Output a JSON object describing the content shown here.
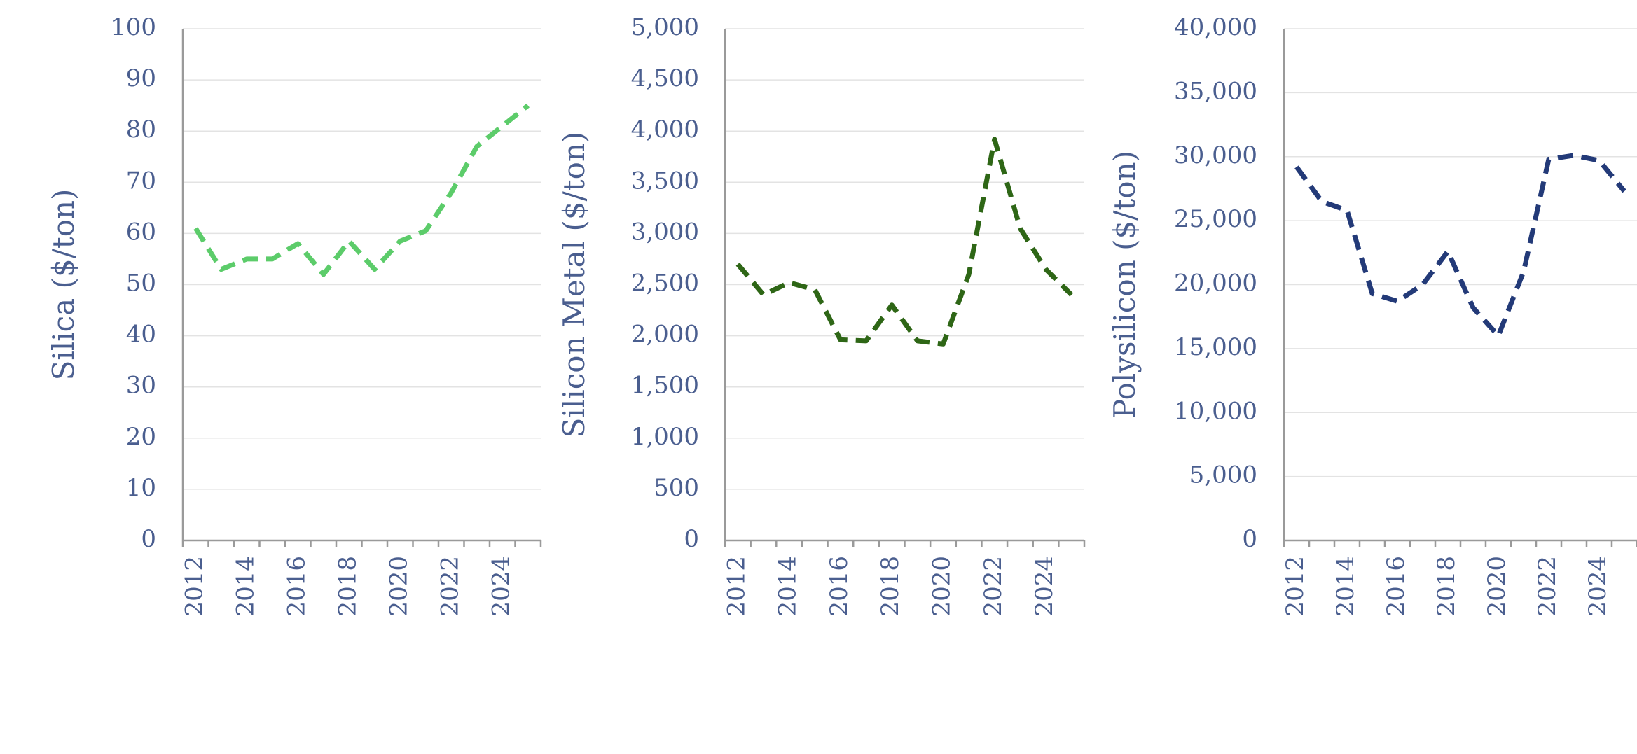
{
  "chart_data": [
    {
      "type": "line",
      "ylabel": "Silica ($/ton)",
      "ylim": [
        0,
        100
      ],
      "ytick_step": 10,
      "yticks": [
        "0",
        "10",
        "20",
        "30",
        "40",
        "50",
        "60",
        "70",
        "80",
        "90",
        "100"
      ],
      "xlabels": [
        "2012",
        "2014",
        "2016",
        "2018",
        "2020",
        "2022",
        "2024"
      ],
      "grid": true,
      "color": "#5ccc6a",
      "series": [
        {
          "x": [
            2012,
            2013,
            2014,
            2015,
            2016,
            2017,
            2018,
            2019,
            2020,
            2021,
            2022,
            2023,
            2024,
            2025
          ],
          "values": [
            61,
            53,
            55,
            55,
            58,
            52,
            58.5,
            53,
            58.5,
            60.5,
            68,
            77,
            81,
            85
          ]
        }
      ]
    },
    {
      "type": "line",
      "ylabel": "Silicon Metal ($/ton)",
      "ylim": [
        0,
        5000
      ],
      "ytick_step": 500,
      "yticks": [
        "0",
        "500",
        "1,000",
        "1,500",
        "2,000",
        "2,500",
        "3,000",
        "3,500",
        "4,000",
        "4,500",
        "5,000"
      ],
      "xlabels": [
        "2012",
        "2014",
        "2016",
        "2018",
        "2020",
        "2022",
        "2024"
      ],
      "grid": true,
      "color": "#2e6616",
      "series": [
        {
          "x": [
            2012,
            2013,
            2014,
            2015,
            2016,
            2017,
            2018,
            2019,
            2020,
            2021,
            2022,
            2023,
            2024,
            2025
          ],
          "values": [
            2700,
            2400,
            2520,
            2450,
            1960,
            1950,
            2300,
            1950,
            1920,
            2600,
            3920,
            3050,
            2650,
            2400
          ]
        }
      ]
    },
    {
      "type": "line",
      "ylabel": "Polysilicon ($/ton)",
      "ylim": [
        0,
        40000
      ],
      "ytick_step": 5000,
      "yticks": [
        "0",
        "5,000",
        "10,000",
        "15,000",
        "20,000",
        "25,000",
        "30,000",
        "35,000",
        "40,000"
      ],
      "xlabels": [
        "2012",
        "2014",
        "2016",
        "2018",
        "2020",
        "2022",
        "2024"
      ],
      "grid": true,
      "color": "#233a78",
      "series": [
        {
          "x": [
            2012,
            2013,
            2014,
            2015,
            2016,
            2017,
            2018,
            2019,
            2020,
            2021,
            2022,
            2023,
            2024,
            2025
          ],
          "values": [
            29200,
            26500,
            25800,
            19300,
            18700,
            20000,
            22600,
            18200,
            16000,
            21000,
            29800,
            30100,
            29700,
            27300
          ]
        }
      ]
    }
  ]
}
